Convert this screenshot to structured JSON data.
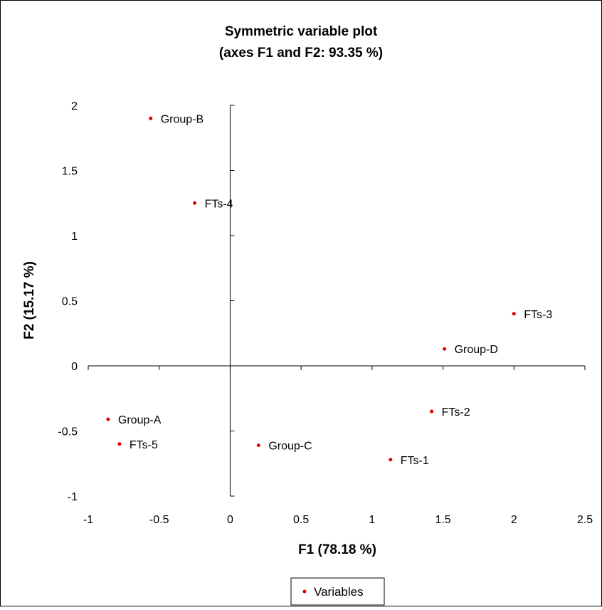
{
  "chart_data": {
    "type": "scatter",
    "title": "Symmetric variable plot",
    "subtitle": "(axes F1 and F2: 93.35 %)",
    "xlabel": "F1 (78.18 %)",
    "ylabel": "F2 (15.17 %)",
    "xlim": [
      -1,
      2.5
    ],
    "ylim": [
      -1,
      2
    ],
    "xticks": [
      "-1",
      "-0.5",
      "0",
      "0.5",
      "1",
      "1.5",
      "2",
      "2.5"
    ],
    "yticks": [
      "-1",
      "-0.5",
      "0",
      "0.5",
      "1",
      "1.5",
      "2"
    ],
    "x_tick_values": [
      -1,
      -0.5,
      0,
      0.5,
      1,
      1.5,
      2,
      2.5
    ],
    "y_tick_values": [
      -1,
      -0.5,
      0,
      0.5,
      1,
      1.5,
      2
    ],
    "grid": false,
    "legend_position": "bottom",
    "series": [
      {
        "name": "Variables",
        "color": "#e00000",
        "points": [
          {
            "label": "Group-B",
            "x": -0.56,
            "y": 1.9
          },
          {
            "label": "FTs-4",
            "x": -0.25,
            "y": 1.25
          },
          {
            "label": "FTs-3",
            "x": 2.0,
            "y": 0.4
          },
          {
            "label": "Group-D",
            "x": 1.51,
            "y": 0.13
          },
          {
            "label": "Group-A",
            "x": -0.86,
            "y": -0.41
          },
          {
            "label": "FTs-5",
            "x": -0.78,
            "y": -0.6
          },
          {
            "label": "Group-C",
            "x": 0.2,
            "y": -0.61
          },
          {
            "label": "FTs-2",
            "x": 1.42,
            "y": -0.35
          },
          {
            "label": "FTs-1",
            "x": 1.13,
            "y": -0.72
          }
        ]
      }
    ]
  }
}
